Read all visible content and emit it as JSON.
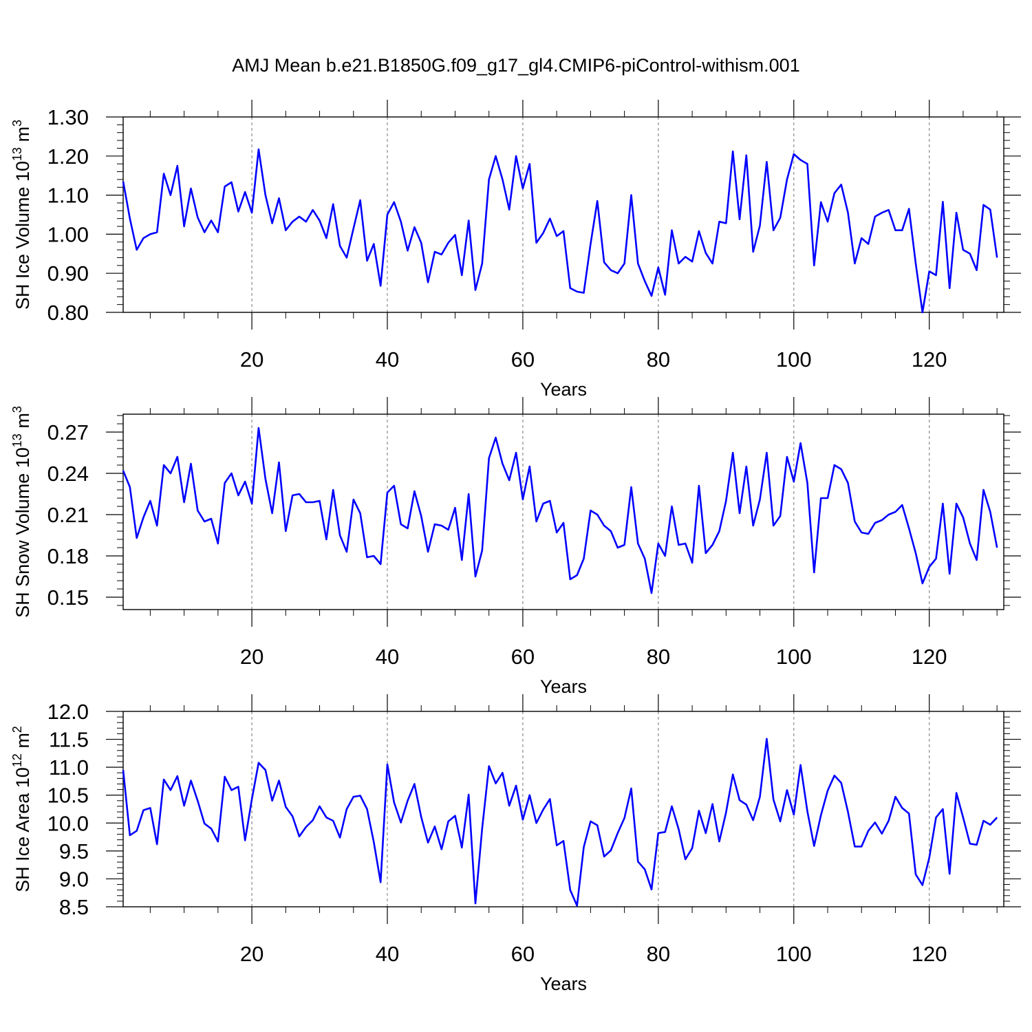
{
  "title": "AMJ Mean b.e21.B1850G.f09_g17_gl4.CMIP6-piControl-withism.001",
  "colors": {
    "line": "#0000ff",
    "grid": "#888888",
    "axis": "#000000"
  },
  "chart_data": [
    {
      "type": "line",
      "xlabel": "Years",
      "ylabel": {
        "base": "SH Ice Volume 10",
        "exp": "13",
        "unit": " m",
        "unit_exp": "3"
      },
      "xlim": [
        1,
        131
      ],
      "ylim": [
        0.8,
        1.3
      ],
      "x_ticks": [
        20,
        40,
        60,
        80,
        100,
        120
      ],
      "y_ticks": [
        "0.80",
        "0.90",
        "1.00",
        "1.10",
        "1.20",
        "1.30"
      ],
      "y_tick_values": [
        0.8,
        0.9,
        1.0,
        1.1,
        1.2,
        1.3
      ],
      "grid": "vertical-dashed-at-major-x",
      "series": [
        {
          "x_start": 1,
          "values": [
            1.135,
            1.04,
            0.96,
            0.99,
            1.0,
            1.005,
            1.155,
            1.1,
            1.175,
            1.02,
            1.117,
            1.043,
            1.005,
            1.035,
            1.005,
            1.122,
            1.133,
            1.058,
            1.108,
            1.055,
            1.217,
            1.1,
            1.028,
            1.092,
            1.01,
            1.032,
            1.045,
            1.032,
            1.062,
            1.035,
            0.99,
            1.077,
            0.97,
            0.94,
            1.015,
            1.087,
            0.932,
            0.975,
            0.868,
            1.05,
            1.082,
            1.032,
            0.958,
            1.018,
            0.978,
            0.877,
            0.955,
            0.948,
            0.978,
            0.998,
            0.895,
            1.035,
            0.857,
            0.925,
            1.14,
            1.2,
            1.14,
            1.063,
            1.2,
            1.117,
            1.18,
            0.978,
            1.003,
            1.04,
            0.995,
            1.008,
            0.862,
            0.853,
            0.85,
            0.975,
            1.085,
            0.928,
            0.908,
            0.9,
            0.925,
            1.1,
            0.925,
            0.88,
            0.842,
            0.915,
            0.845,
            1.01,
            0.925,
            0.942,
            0.93,
            1.008,
            0.952,
            0.925,
            1.032,
            1.028,
            1.212,
            1.038,
            1.202,
            0.955,
            1.022,
            1.185,
            1.01,
            1.042,
            1.14,
            1.205,
            1.19,
            1.18,
            0.92,
            1.082,
            1.032,
            1.105,
            1.127,
            1.055,
            0.925,
            0.99,
            0.975,
            1.045,
            1.055,
            1.062,
            1.01,
            1.01,
            1.065,
            0.925,
            0.8,
            0.905,
            0.895,
            1.083,
            0.862,
            1.055,
            0.96,
            0.95,
            0.908,
            1.075,
            1.063,
            0.94
          ]
        }
      ]
    },
    {
      "type": "line",
      "xlabel": "Years",
      "ylabel": {
        "base": "SH Snow Volume 10",
        "exp": "13",
        "unit": " m",
        "unit_exp": "3"
      },
      "xlim": [
        1,
        131
      ],
      "ylim": [
        0.141,
        0.283
      ],
      "x_ticks": [
        20,
        40,
        60,
        80,
        100,
        120
      ],
      "y_ticks": [
        "0.15",
        "0.18",
        "0.21",
        "0.24",
        "0.27"
      ],
      "y_tick_values": [
        0.15,
        0.18,
        0.21,
        0.24,
        0.27
      ],
      "grid": "vertical-dashed-at-major-x",
      "series": [
        {
          "x_start": 1,
          "values": [
            0.242,
            0.23,
            0.193,
            0.208,
            0.22,
            0.202,
            0.246,
            0.24,
            0.252,
            0.219,
            0.247,
            0.213,
            0.205,
            0.207,
            0.189,
            0.233,
            0.24,
            0.224,
            0.234,
            0.218,
            0.273,
            0.236,
            0.211,
            0.248,
            0.198,
            0.224,
            0.225,
            0.219,
            0.219,
            0.22,
            0.192,
            0.228,
            0.195,
            0.183,
            0.221,
            0.211,
            0.179,
            0.18,
            0.174,
            0.226,
            0.231,
            0.203,
            0.2,
            0.227,
            0.209,
            0.183,
            0.203,
            0.202,
            0.199,
            0.215,
            0.177,
            0.225,
            0.165,
            0.184,
            0.251,
            0.266,
            0.247,
            0.235,
            0.255,
            0.221,
            0.245,
            0.205,
            0.218,
            0.22,
            0.197,
            0.204,
            0.163,
            0.166,
            0.178,
            0.213,
            0.21,
            0.202,
            0.198,
            0.186,
            0.188,
            0.23,
            0.189,
            0.178,
            0.153,
            0.189,
            0.18,
            0.216,
            0.188,
            0.189,
            0.175,
            0.231,
            0.182,
            0.188,
            0.198,
            0.22,
            0.255,
            0.211,
            0.245,
            0.202,
            0.221,
            0.255,
            0.202,
            0.209,
            0.252,
            0.234,
            0.262,
            0.233,
            0.168,
            0.222,
            0.222,
            0.246,
            0.243,
            0.233,
            0.205,
            0.197,
            0.196,
            0.204,
            0.206,
            0.21,
            0.212,
            0.217,
            0.2,
            0.182,
            0.16,
            0.172,
            0.178,
            0.218,
            0.167,
            0.218,
            0.208,
            0.189,
            0.177,
            0.228,
            0.212,
            0.186
          ]
        }
      ]
    },
    {
      "type": "line",
      "xlabel": "Years",
      "ylabel": {
        "base": "SH Ice Area 10",
        "exp": "12",
        "unit": " m",
        "unit_exp": "2"
      },
      "xlim": [
        1,
        131
      ],
      "ylim": [
        8.5,
        12.0
      ],
      "x_ticks": [
        20,
        40,
        60,
        80,
        100,
        120
      ],
      "y_ticks": [
        "8.5",
        "9.0",
        "9.5",
        "10.0",
        "10.5",
        "11.0",
        "11.5",
        "12.0"
      ],
      "y_tick_values": [
        8.5,
        9.0,
        9.5,
        10.0,
        10.5,
        11.0,
        11.5,
        12.0
      ],
      "grid": "vertical-dashed-at-major-x",
      "series": [
        {
          "x_start": 1,
          "values": [
            10.95,
            9.78,
            9.86,
            10.23,
            10.27,
            9.62,
            10.78,
            10.59,
            10.84,
            10.31,
            10.76,
            10.4,
            9.99,
            9.9,
            9.67,
            10.83,
            10.59,
            10.65,
            9.69,
            10.43,
            11.08,
            10.95,
            10.4,
            10.76,
            10.29,
            10.12,
            9.76,
            9.93,
            10.05,
            10.3,
            10.1,
            10.04,
            9.74,
            10.25,
            10.47,
            10.49,
            10.25,
            9.66,
            8.94,
            11.05,
            10.37,
            10.01,
            10.4,
            10.7,
            10.11,
            9.65,
            9.94,
            9.53,
            10.03,
            10.13,
            9.56,
            10.51,
            8.56,
            9.9,
            11.02,
            10.71,
            10.9,
            10.31,
            10.67,
            10.06,
            10.5,
            10.0,
            10.24,
            10.43,
            9.6,
            9.68,
            8.8,
            8.52,
            9.57,
            10.03,
            9.96,
            9.4,
            9.51,
            9.82,
            10.09,
            10.62,
            9.31,
            9.17,
            8.81,
            9.82,
            9.84,
            10.3,
            9.89,
            9.35,
            9.55,
            10.22,
            9.82,
            10.34,
            9.67,
            10.19,
            10.87,
            10.41,
            10.33,
            10.05,
            10.47,
            11.51,
            10.42,
            10.03,
            10.59,
            10.15,
            11.04,
            10.21,
            9.59,
            10.14,
            10.58,
            10.85,
            10.72,
            10.2,
            9.58,
            9.58,
            9.86,
            10.01,
            9.81,
            10.04,
            10.47,
            10.27,
            10.17,
            9.08,
            8.89,
            9.38,
            10.1,
            10.25,
            9.09,
            10.54,
            10.1,
            9.63,
            9.61,
            10.04,
            9.97,
            10.1
          ]
        }
      ]
    }
  ]
}
